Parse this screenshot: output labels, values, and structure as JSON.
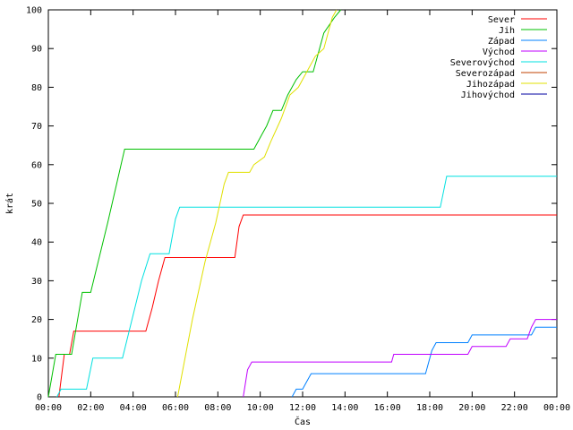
{
  "chart_data": {
    "type": "line",
    "title": "",
    "xlabel": "Čas",
    "ylabel": "krát",
    "xlim": [
      0,
      24
    ],
    "ylim": [
      0,
      100
    ],
    "x_ticks": [
      {
        "value": 0,
        "label": "00:00"
      },
      {
        "value": 2,
        "label": "02:00"
      },
      {
        "value": 4,
        "label": "04:00"
      },
      {
        "value": 6,
        "label": "06:00"
      },
      {
        "value": 8,
        "label": "08:00"
      },
      {
        "value": 10,
        "label": "10:00"
      },
      {
        "value": 12,
        "label": "12:00"
      },
      {
        "value": 14,
        "label": "14:00"
      },
      {
        "value": 16,
        "label": "16:00"
      },
      {
        "value": 18,
        "label": "18:00"
      },
      {
        "value": 20,
        "label": "20:00"
      },
      {
        "value": 22,
        "label": "22:00"
      },
      {
        "value": 24,
        "label": "00:00"
      }
    ],
    "y_ticks": [
      0,
      10,
      20,
      30,
      40,
      50,
      60,
      70,
      80,
      90,
      100
    ],
    "grid": false,
    "legend_position": "top-right",
    "series": [
      {
        "name": "Sever",
        "color": "#ff0000",
        "points": [
          [
            0.5,
            0
          ],
          [
            0.75,
            11
          ],
          [
            1.0,
            11
          ],
          [
            1.2,
            17
          ],
          [
            4.6,
            17
          ],
          [
            4.9,
            23
          ],
          [
            5.2,
            30
          ],
          [
            5.5,
            36
          ],
          [
            8.8,
            36
          ],
          [
            9.0,
            44
          ],
          [
            9.2,
            47
          ],
          [
            24,
            47
          ]
        ]
      },
      {
        "name": "Jih",
        "color": "#00c000",
        "points": [
          [
            0,
            0
          ],
          [
            0.35,
            11
          ],
          [
            1.1,
            11
          ],
          [
            1.6,
            27
          ],
          [
            2.0,
            27
          ],
          [
            2.8,
            45
          ],
          [
            3.6,
            64
          ],
          [
            9.7,
            64
          ],
          [
            9.9,
            66
          ],
          [
            10.1,
            68
          ],
          [
            10.3,
            70
          ],
          [
            10.6,
            74
          ],
          [
            11.0,
            74
          ],
          [
            11.3,
            78
          ],
          [
            11.7,
            82
          ],
          [
            12.0,
            84
          ],
          [
            12.5,
            84
          ],
          [
            13.0,
            94
          ],
          [
            13.5,
            98
          ],
          [
            13.8,
            100
          ]
        ]
      },
      {
        "name": "Západ",
        "color": "#0080ff",
        "points": [
          [
            11.5,
            0
          ],
          [
            11.7,
            2
          ],
          [
            12.0,
            2
          ],
          [
            12.2,
            4
          ],
          [
            12.4,
            6
          ],
          [
            17.8,
            6
          ],
          [
            18.1,
            12
          ],
          [
            18.3,
            14
          ],
          [
            19.8,
            14
          ],
          [
            20.0,
            16
          ],
          [
            22.8,
            16
          ],
          [
            23.0,
            18
          ],
          [
            24,
            18
          ]
        ]
      },
      {
        "name": "Východ",
        "color": "#c000ff",
        "points": [
          [
            9.2,
            0
          ],
          [
            9.4,
            7
          ],
          [
            9.6,
            9
          ],
          [
            16.2,
            9
          ],
          [
            16.3,
            11
          ],
          [
            19.8,
            11
          ],
          [
            20.0,
            13
          ],
          [
            21.6,
            13
          ],
          [
            21.8,
            15
          ],
          [
            22.6,
            15
          ],
          [
            22.8,
            18
          ],
          [
            23.0,
            20
          ],
          [
            24,
            20
          ]
        ]
      },
      {
        "name": "Severovýchod",
        "color": "#00e0e0",
        "points": [
          [
            0.4,
            0
          ],
          [
            0.6,
            2
          ],
          [
            1.8,
            2
          ],
          [
            2.1,
            10
          ],
          [
            3.5,
            10
          ],
          [
            4.4,
            30
          ],
          [
            4.8,
            37
          ],
          [
            5.7,
            37
          ],
          [
            6.0,
            46
          ],
          [
            6.2,
            49
          ],
          [
            18.5,
            49
          ],
          [
            18.8,
            57
          ],
          [
            24,
            57
          ]
        ]
      },
      {
        "name": "Severozápad",
        "color": "#c04000",
        "points": []
      },
      {
        "name": "Jihozápad",
        "color": "#e0e000",
        "points": [
          [
            6.1,
            0
          ],
          [
            6.8,
            20
          ],
          [
            7.4,
            35
          ],
          [
            7.9,
            45
          ],
          [
            8.3,
            55
          ],
          [
            8.5,
            58
          ],
          [
            9.5,
            58
          ],
          [
            9.7,
            60
          ],
          [
            10.2,
            62
          ],
          [
            10.5,
            66
          ],
          [
            11.0,
            72
          ],
          [
            11.4,
            78
          ],
          [
            11.8,
            80
          ],
          [
            12.2,
            84
          ],
          [
            12.6,
            88
          ],
          [
            13.0,
            90
          ],
          [
            13.4,
            98
          ],
          [
            13.6,
            100
          ]
        ]
      },
      {
        "name": "Jihovýchod",
        "color": "#0000a0",
        "points": []
      }
    ]
  }
}
